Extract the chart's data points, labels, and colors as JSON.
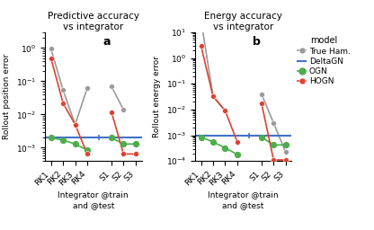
{
  "title_a": "Predictive accuracy\nvs integrator",
  "title_b": "Energy accuracy\nvs integrator",
  "label_a": "a",
  "label_b": "b",
  "xlabel": "Integrator @train\nand @test",
  "ylabel_a": "Rollout position error",
  "ylabel_b": "Rollout energy error",
  "xtick_labels": [
    "RK1",
    "RK2",
    "RK3",
    "RK4",
    "S1",
    "S2",
    "S3"
  ],
  "xtick_positions": [
    0,
    1,
    2,
    3,
    5,
    6,
    7
  ],
  "deltaGN_a": 0.002,
  "deltaGN_b": 0.00095,
  "true_ham_a": [
    0.95,
    0.055,
    0.005,
    0.063,
    0.07,
    0.014,
    null
  ],
  "true_ham_b": [
    30.0,
    0.032,
    0.009,
    null,
    0.04,
    0.003,
    0.00022
  ],
  "ogn_a": [
    0.002,
    0.0017,
    0.0013,
    0.00085,
    0.002,
    0.0013,
    0.0013
  ],
  "ogn_b": [
    0.00085,
    0.00055,
    0.00032,
    0.00018,
    0.00085,
    0.00042,
    0.00042
  ],
  "hogn_a": [
    0.5,
    0.022,
    0.005,
    0.00065,
    0.012,
    0.00065,
    0.00065
  ],
  "hogn_b": [
    3.0,
    0.032,
    0.009,
    0.00055,
    0.018,
    0.00011,
    0.00011
  ],
  "color_true_ham": "#9a9a9a",
  "color_deltaGN": "#4472c4",
  "color_ogn": "#4cae4c",
  "color_hogn": "#e04030",
  "ylim_a": [
    0.0004,
    3.0
  ],
  "ylim_b": [
    0.0001,
    10.0
  ],
  "legend_title": "model",
  "legend_labels": [
    "True Ham.",
    "DeltaGN",
    "OGN",
    "HOGN"
  ]
}
